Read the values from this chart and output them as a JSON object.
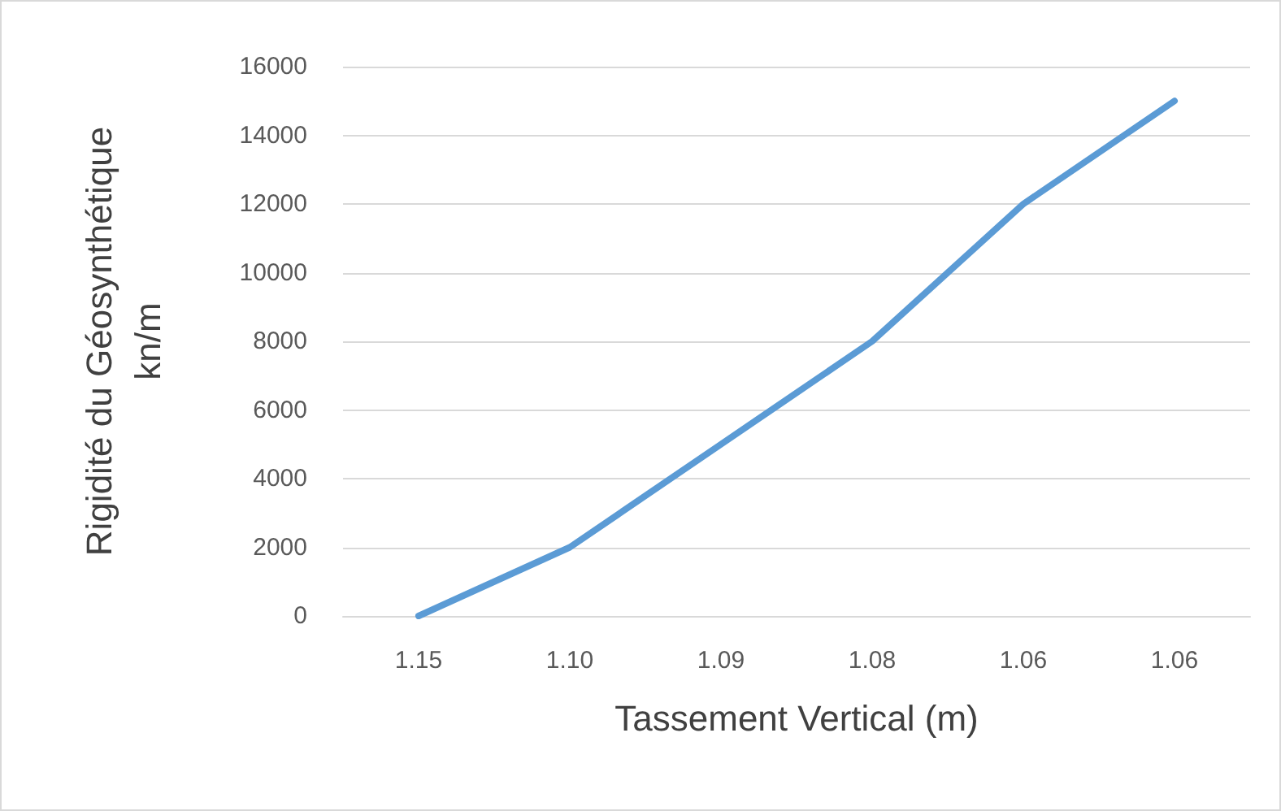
{
  "chart_data": {
    "type": "line",
    "xlabel": "Tassement Vertical (m)",
    "ylabel": "Rigidité du Géosynthétique\nkn/m",
    "categories": [
      "1.15",
      "1.10",
      "1.09",
      "1.08",
      "1.06",
      "1.06"
    ],
    "series": [
      {
        "color": "#5b9bd5",
        "values": [
          0,
          2000,
          5000,
          8000,
          12000,
          15000
        ]
      }
    ],
    "ylim": [
      0,
      16000
    ],
    "yticks": [
      0,
      2000,
      4000,
      6000,
      8000,
      10000,
      12000,
      14000,
      16000
    ],
    "grid": "y"
  }
}
